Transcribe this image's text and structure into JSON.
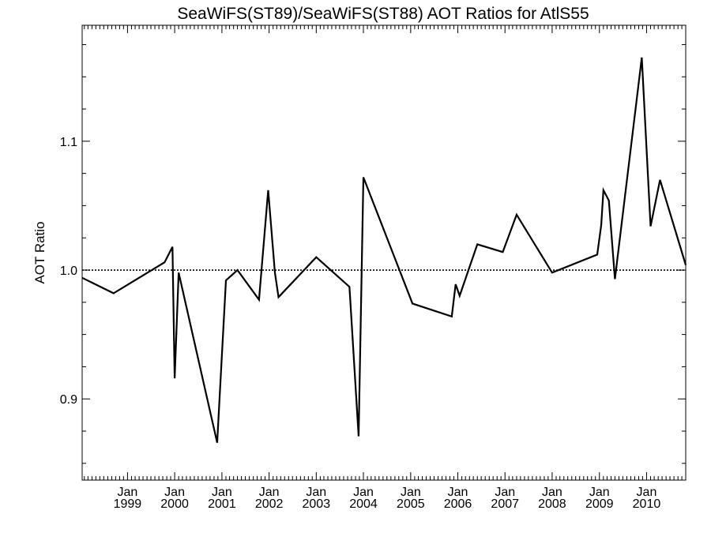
{
  "chart_data": {
    "type": "line",
    "title": "SeaWiFS(ST89)/SeaWiFS(ST88)  AOT Ratios for AtlS55",
    "xlabel": "",
    "ylabel": "AOT Ratio",
    "x_range": [
      "1998-01-15",
      "2010-10-31"
    ],
    "ylim": [
      0.837,
      1.19
    ],
    "y_ticks": [
      {
        "value": 0.9,
        "label": "0.9"
      },
      {
        "value": 1.0,
        "label": "1.0"
      },
      {
        "value": 1.1,
        "label": "1.1"
      }
    ],
    "y_minor_step": 0.025,
    "x_ticks": [
      {
        "date": "1999-01-01",
        "month": "Jan",
        "year": "1999"
      },
      {
        "date": "2000-01-01",
        "month": "Jan",
        "year": "2000"
      },
      {
        "date": "2001-01-01",
        "month": "Jan",
        "year": "2001"
      },
      {
        "date": "2002-01-01",
        "month": "Jan",
        "year": "2002"
      },
      {
        "date": "2003-01-01",
        "month": "Jan",
        "year": "2003"
      },
      {
        "date": "2004-01-01",
        "month": "Jan",
        "year": "2004"
      },
      {
        "date": "2005-01-01",
        "month": "Jan",
        "year": "2005"
      },
      {
        "date": "2006-01-01",
        "month": "Jan",
        "year": "2006"
      },
      {
        "date": "2007-01-01",
        "month": "Jan",
        "year": "2007"
      },
      {
        "date": "2008-01-01",
        "month": "Jan",
        "year": "2008"
      },
      {
        "date": "2009-01-01",
        "month": "Jan",
        "year": "2009"
      },
      {
        "date": "2010-01-01",
        "month": "Jan",
        "year": "2010"
      }
    ],
    "reference_line": {
      "y": 1.0,
      "style": "dotted"
    },
    "grid": false,
    "series": [
      {
        "color": "#000000",
        "points": [
          {
            "x": "1998-01-15",
            "y": 0.994
          },
          {
            "x": "1998-09-15",
            "y": 0.982
          },
          {
            "x": "1999-10-15",
            "y": 1.006
          },
          {
            "x": "1999-12-15",
            "y": 1.018
          },
          {
            "x": "2000-01-01",
            "y": 0.916
          },
          {
            "x": "2000-02-01",
            "y": 0.998
          },
          {
            "x": "2000-11-25",
            "y": 0.866
          },
          {
            "x": "2001-02-01",
            "y": 0.992
          },
          {
            "x": "2001-05-01",
            "y": 1.0
          },
          {
            "x": "2001-10-15",
            "y": 0.977
          },
          {
            "x": "2001-12-25",
            "y": 1.062
          },
          {
            "x": "2002-02-15",
            "y": 0.998
          },
          {
            "x": "2002-03-15",
            "y": 0.979
          },
          {
            "x": "2003-01-01",
            "y": 1.01
          },
          {
            "x": "2003-09-15",
            "y": 0.987
          },
          {
            "x": "2003-11-25",
            "y": 0.871
          },
          {
            "x": "2004-01-01",
            "y": 1.072
          },
          {
            "x": "2005-01-15",
            "y": 0.974
          },
          {
            "x": "2005-11-15",
            "y": 0.964
          },
          {
            "x": "2005-12-15",
            "y": 0.989
          },
          {
            "x": "2006-01-15",
            "y": 0.98
          },
          {
            "x": "2006-06-01",
            "y": 1.02
          },
          {
            "x": "2006-12-15",
            "y": 1.014
          },
          {
            "x": "2007-04-01",
            "y": 1.043
          },
          {
            "x": "2008-01-01",
            "y": 0.998
          },
          {
            "x": "2008-12-15",
            "y": 1.012
          },
          {
            "x": "2009-01-15",
            "y": 1.035
          },
          {
            "x": "2009-02-01",
            "y": 1.062
          },
          {
            "x": "2009-03-15",
            "y": 1.054
          },
          {
            "x": "2009-05-01",
            "y": 0.993
          },
          {
            "x": "2009-11-25",
            "y": 1.165
          },
          {
            "x": "2010-02-01",
            "y": 1.034
          },
          {
            "x": "2010-04-15",
            "y": 1.07
          },
          {
            "x": "2010-10-31",
            "y": 1.004
          }
        ]
      }
    ]
  }
}
